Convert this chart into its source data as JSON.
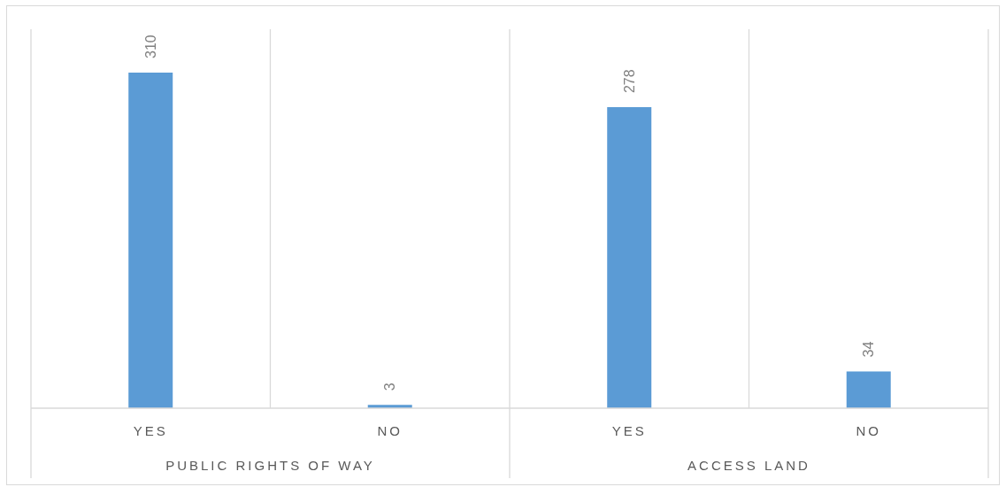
{
  "chart_data": {
    "type": "bar",
    "categories": [
      "YES",
      "NO",
      "YES",
      "NO"
    ],
    "values": [
      310,
      3,
      278,
      34
    ],
    "color": "#5b9bd5",
    "ylim": [
      0,
      350
    ],
    "data_labels": true,
    "grid": "x",
    "tick_labels": "x",
    "annotations": [
      "PUBLIC RIGHTS OF WAY",
      "ACCESS LAND"
    ]
  }
}
